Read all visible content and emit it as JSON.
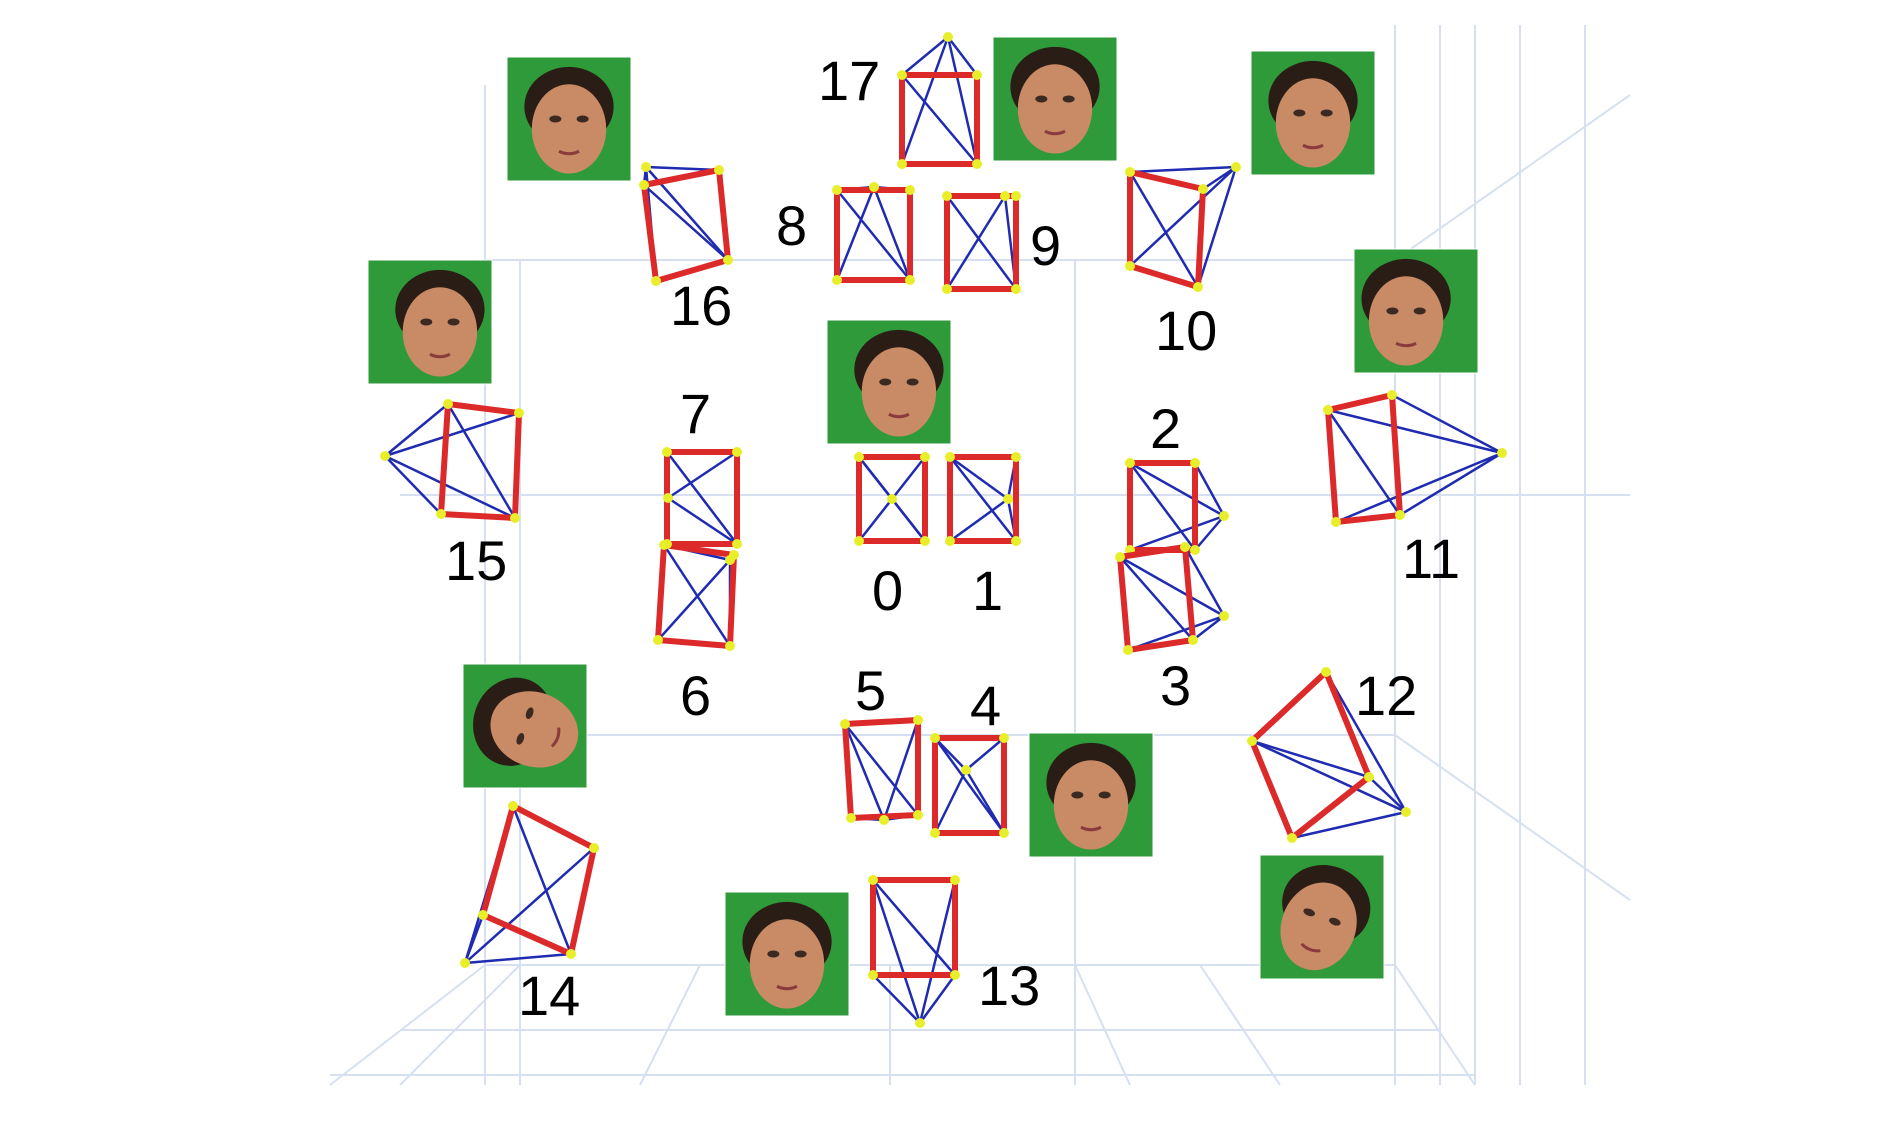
{
  "colors": {
    "frame_edge": "#dc2a2a",
    "frustum_edge": "#1f2bb0",
    "vertex": "#e8ef2a",
    "green_screen": "#2f9a3a",
    "skin": "#c98a66",
    "hair": "#2a1d16",
    "grid": "#d6e0f0"
  },
  "cameras": [
    {
      "id": "0",
      "label": "0"
    },
    {
      "id": "1",
      "label": "1"
    },
    {
      "id": "2",
      "label": "2"
    },
    {
      "id": "3",
      "label": "3"
    },
    {
      "id": "4",
      "label": "4"
    },
    {
      "id": "5",
      "label": "5"
    },
    {
      "id": "6",
      "label": "6"
    },
    {
      "id": "7",
      "label": "7"
    },
    {
      "id": "8",
      "label": "8"
    },
    {
      "id": "9",
      "label": "9"
    },
    {
      "id": "10",
      "label": "10"
    },
    {
      "id": "11",
      "label": "11"
    },
    {
      "id": "12",
      "label": "12"
    },
    {
      "id": "13",
      "label": "13"
    },
    {
      "id": "14",
      "label": "14"
    },
    {
      "id": "15",
      "label": "15"
    },
    {
      "id": "16",
      "label": "16"
    },
    {
      "id": "17",
      "label": "17"
    }
  ],
  "face_thumbnails": [
    {
      "id": "front",
      "view": "frontal"
    },
    {
      "id": "top-center",
      "view": "looking-down"
    },
    {
      "id": "top-left",
      "view": "looking-down-left"
    },
    {
      "id": "top-right",
      "view": "looking-down-right"
    },
    {
      "id": "left",
      "view": "profile-left"
    },
    {
      "id": "right",
      "view": "profile-right"
    },
    {
      "id": "bottom-left",
      "view": "looking-up-left"
    },
    {
      "id": "bottom-center-right",
      "view": "looking-up"
    },
    {
      "id": "bottom-center",
      "view": "looking-up"
    },
    {
      "id": "bottom-right",
      "view": "looking-up-right"
    }
  ]
}
